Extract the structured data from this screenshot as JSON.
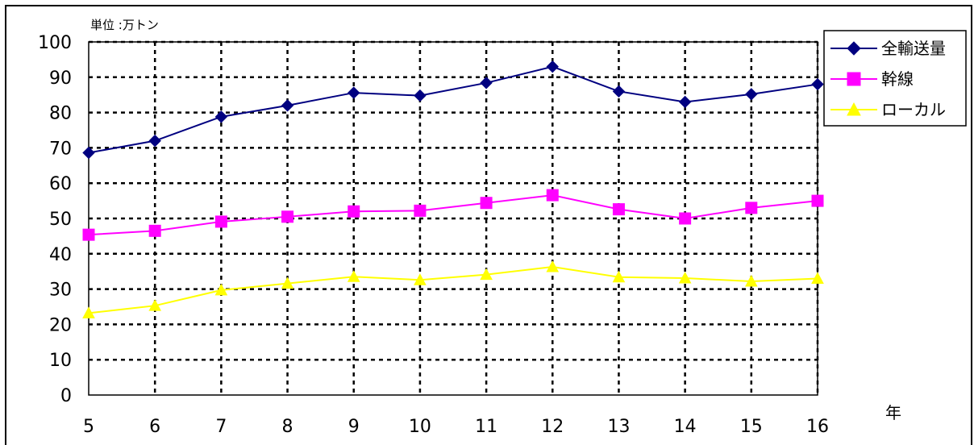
{
  "chart_data": {
    "type": "line",
    "unit_label": "単位 :万トン",
    "xlabel": "年",
    "ylabel": "",
    "categories": [
      "5",
      "6",
      "7",
      "8",
      "9",
      "10",
      "11",
      "12",
      "13",
      "14",
      "15",
      "16"
    ],
    "ylim": [
      0,
      100
    ],
    "yticks": [
      0,
      10,
      20,
      30,
      40,
      50,
      60,
      70,
      80,
      90,
      100
    ],
    "grid": true,
    "legend_position": "top-right",
    "series": [
      {
        "name": "全輸送量",
        "color": "#000080",
        "marker": "diamond",
        "values": [
          68.6,
          72.0,
          78.8,
          82.0,
          85.6,
          84.8,
          88.4,
          93.0,
          86.0,
          83.0,
          85.2,
          88.0
        ]
      },
      {
        "name": "幹線",
        "color": "#ff00ff",
        "marker": "square",
        "values": [
          45.4,
          46.5,
          49.1,
          50.5,
          52.0,
          52.2,
          54.4,
          56.6,
          52.6,
          50.0,
          53.0,
          55.0
        ]
      },
      {
        "name": "ローカル",
        "color": "#ffff00",
        "marker": "triangle",
        "values": [
          23.2,
          25.3,
          29.7,
          31.6,
          33.5,
          32.6,
          34.1,
          36.3,
          33.4,
          33.1,
          32.2,
          33.0
        ]
      }
    ]
  }
}
